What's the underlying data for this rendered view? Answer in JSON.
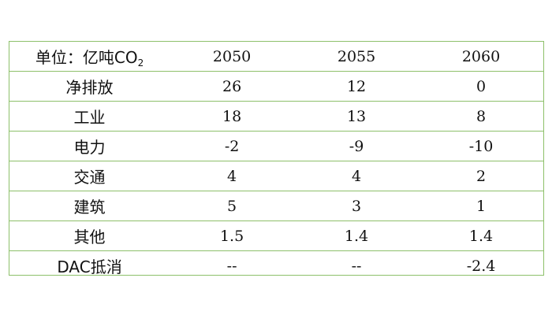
{
  "header": {
    "unit_label": "单位：亿吨CO",
    "unit_subscript": "2",
    "years": [
      "2050",
      "2055",
      "2060"
    ]
  },
  "rows": [
    {
      "label": "净排放",
      "values": [
        "26",
        "12",
        "0"
      ]
    },
    {
      "label": "工业",
      "values": [
        "18",
        "13",
        "8"
      ]
    },
    {
      "label": "电力",
      "values": [
        "-2",
        "-9",
        "-10"
      ]
    },
    {
      "label": "交通",
      "values": [
        "4",
        "4",
        "2"
      ]
    },
    {
      "label": "建筑",
      "values": [
        "5",
        "3",
        "1"
      ]
    },
    {
      "label": "其他",
      "values": [
        "1.5",
        "1.4",
        "1.4"
      ]
    },
    {
      "label": "DAC抵消",
      "values": [
        "--",
        "--",
        "-2.4"
      ]
    }
  ],
  "colors": {
    "border": "#8dc06a",
    "text": "#111111"
  }
}
